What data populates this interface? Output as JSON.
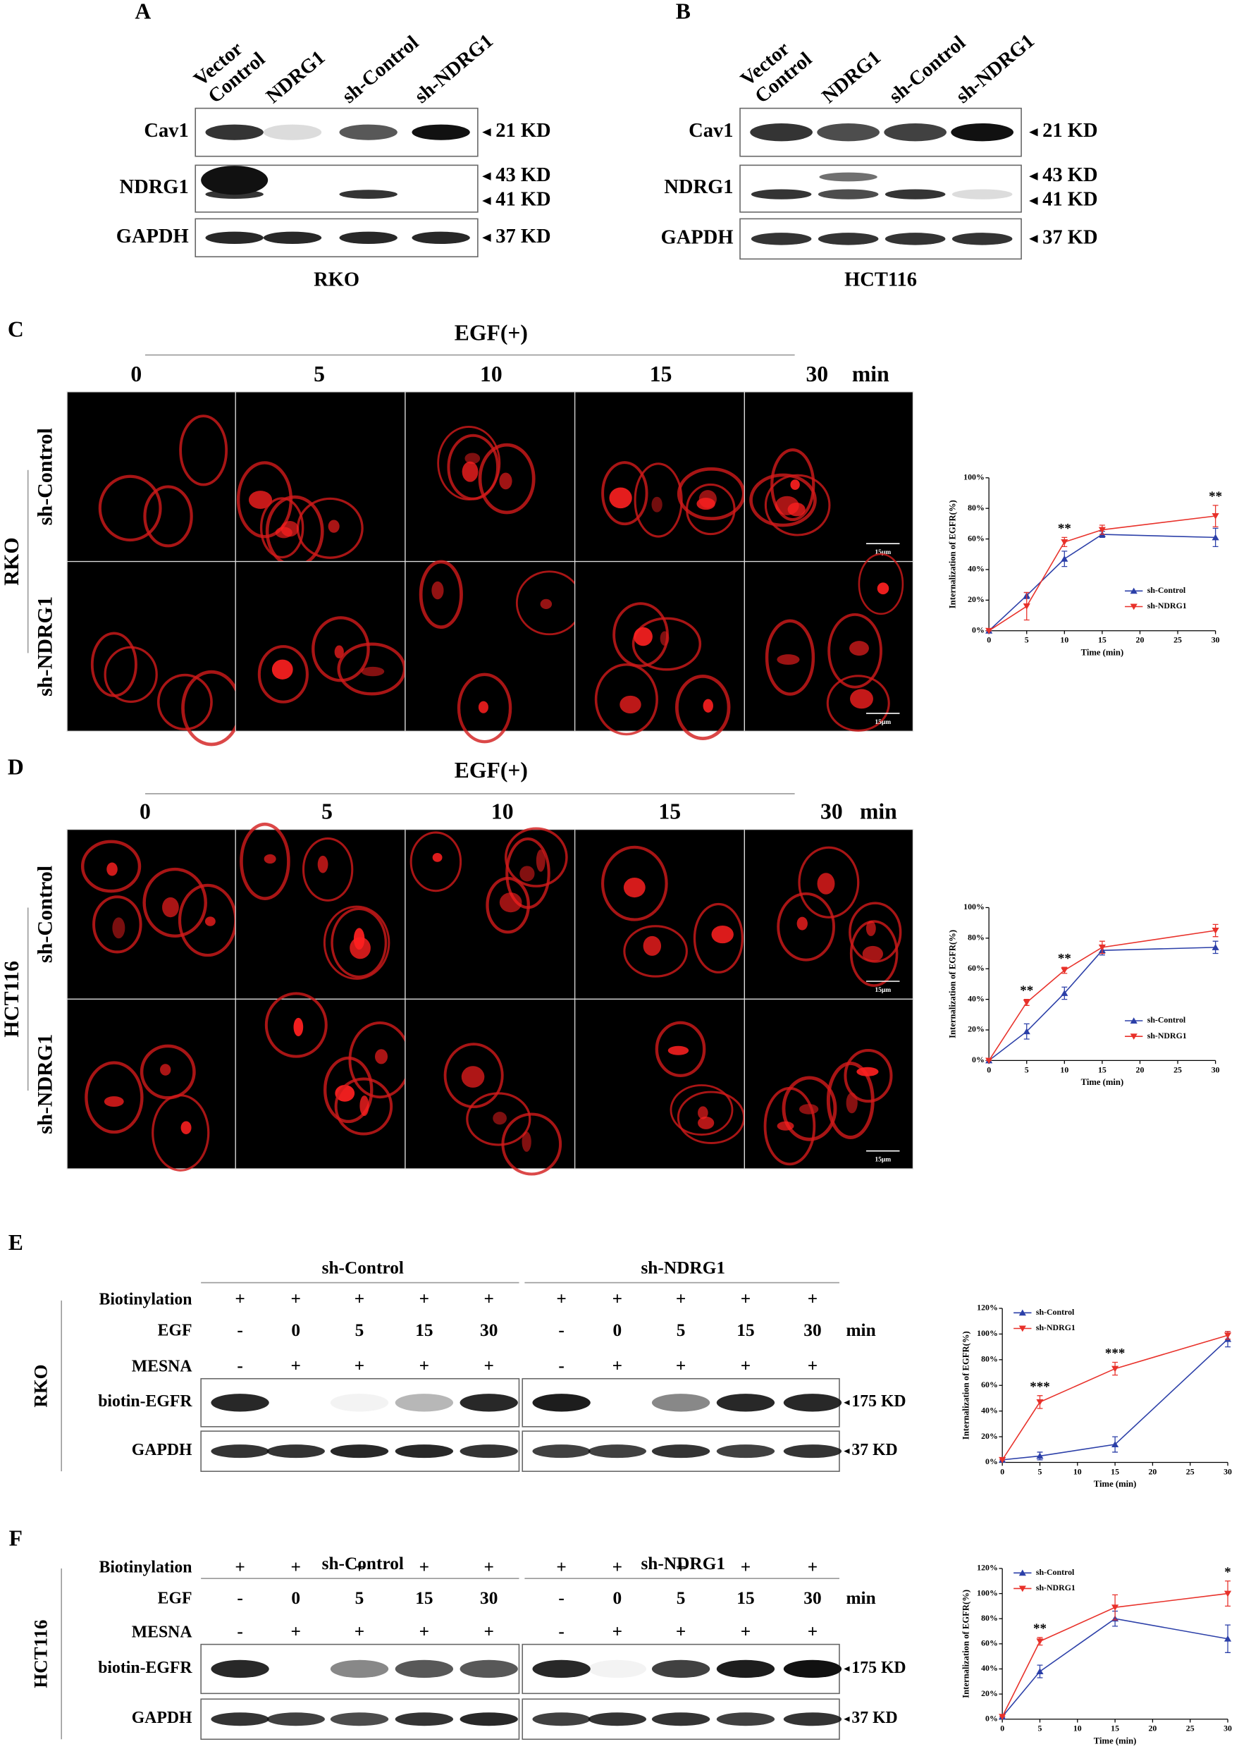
{
  "panels": {
    "A": {
      "letter": "A",
      "columns": [
        {
          "lines": [
            "Vector",
            "Control"
          ]
        },
        {
          "lines": [
            "NDRG1"
          ]
        },
        {
          "lines": [
            "sh-Control"
          ]
        },
        {
          "lines": [
            "sh-NDRG1"
          ]
        }
      ],
      "rows": [
        {
          "label": "Cav1",
          "markers": [
            "21 KD"
          ]
        },
        {
          "label": "NDRG1",
          "markers": [
            "43 KD",
            "41 KD"
          ]
        },
        {
          "label": "GAPDH",
          "markers": [
            "37 KD"
          ]
        }
      ],
      "cell_line": "RKO"
    },
    "B": {
      "letter": "B",
      "columns": [
        {
          "lines": [
            "Vector",
            "Control"
          ]
        },
        {
          "lines": [
            "NDRG1"
          ]
        },
        {
          "lines": [
            "sh-Control"
          ]
        },
        {
          "lines": [
            "sh-NDRG1"
          ]
        }
      ],
      "rows": [
        {
          "label": "Cav1",
          "markers": [
            "21 KD"
          ]
        },
        {
          "label": "NDRG1",
          "markers": [
            "43 KD",
            "41 KD"
          ]
        },
        {
          "label": "GAPDH",
          "markers": [
            "37 KD"
          ]
        }
      ],
      "cell_line": "HCT116"
    },
    "C": {
      "letter": "C",
      "treatment": "EGF(+)",
      "times": [
        "0",
        "5",
        "10",
        "15",
        "30"
      ],
      "time_unit": "min",
      "rows": [
        "sh-Control",
        "sh-NDRG1"
      ],
      "cell_line": "RKO",
      "scale_bar": "15μm"
    },
    "D": {
      "letter": "D",
      "treatment": "EGF(+)",
      "times": [
        "0",
        "5",
        "10",
        "15",
        "30"
      ],
      "time_unit": "min",
      "rows": [
        "sh-Control",
        "sh-NDRG1"
      ],
      "cell_line": "HCT116",
      "scale_bar": "15μm"
    },
    "E": {
      "letter": "E",
      "groups": [
        "sh-Control",
        "sh-NDRG1"
      ],
      "conditions": [
        {
          "label": "Biotinylation",
          "values": [
            "+",
            "+",
            "+",
            "+",
            "+",
            "+",
            "+",
            "+",
            "+",
            "+"
          ]
        },
        {
          "label": "EGF",
          "values": [
            "-",
            "0",
            "5",
            "15",
            "30",
            "-",
            "0",
            "5",
            "15",
            "30"
          ],
          "unit": "min"
        },
        {
          "label": "MESNA",
          "values": [
            "-",
            "+",
            "+",
            "+",
            "+",
            "-",
            "+",
            "+",
            "+",
            "+"
          ]
        }
      ],
      "blots": [
        {
          "label": "biotin-EGFR",
          "marker": "175 KD"
        },
        {
          "label": "GAPDH",
          "marker": "37 KD"
        }
      ],
      "cell_line": "RKO"
    },
    "F": {
      "letter": "F",
      "groups": [
        "sh-Control",
        "sh-NDRG1"
      ],
      "conditions": [
        {
          "label": "Biotinylation",
          "values": [
            "+",
            "+",
            "+",
            "+",
            "+",
            "+",
            "+",
            "+",
            "+",
            "+"
          ]
        },
        {
          "label": "EGF",
          "values": [
            "-",
            "0",
            "5",
            "15",
            "30",
            "-",
            "0",
            "5",
            "15",
            "30"
          ],
          "unit": "min"
        },
        {
          "label": "MESNA",
          "values": [
            "-",
            "+",
            "+",
            "+",
            "+",
            "-",
            "+",
            "+",
            "+",
            "+"
          ]
        }
      ],
      "blots": [
        {
          "label": "biotin-EGFR",
          "marker": "175 KD"
        },
        {
          "label": "GAPDH",
          "marker": "37 KD"
        }
      ],
      "cell_line": "HCT116"
    }
  },
  "chart_data": [
    {
      "type": "line",
      "x": [
        0,
        5,
        10,
        15,
        30
      ],
      "xlim": [
        0,
        30
      ],
      "xticks": [
        0,
        5,
        10,
        15,
        20,
        25,
        30
      ],
      "ylim": [
        0,
        100
      ],
      "yticks": [
        {
          "value": 0,
          "label": "0%"
        },
        {
          "value": 20,
          "label": "20%"
        },
        {
          "value": 40,
          "label": "40%"
        },
        {
          "value": 60,
          "label": "60%"
        },
        {
          "value": 80,
          "label": "80%"
        },
        {
          "value": 100,
          "label": "100%"
        }
      ],
      "xlabel": "Time (min)",
      "ylabel": "Internalization of EGFR(%)",
      "legend": "right",
      "series": [
        {
          "name": "sh-Control",
          "color": "#2b3fa8",
          "marker": "up",
          "values": [
            0,
            23,
            47,
            63,
            61
          ],
          "errors": [
            0,
            2,
            5,
            2,
            6
          ]
        },
        {
          "name": "sh-NDRG1",
          "color": "#e8312a",
          "marker": "down",
          "values": [
            0,
            16,
            58,
            66,
            75
          ],
          "errors": [
            0,
            9,
            3,
            3,
            7
          ]
        }
      ],
      "annotations": [
        {
          "text": "**",
          "x": 10
        },
        {
          "text": "**",
          "x": 30
        }
      ]
    },
    {
      "type": "line",
      "x": [
        0,
        5,
        10,
        15,
        30
      ],
      "xlim": [
        0,
        30
      ],
      "xticks": [
        0,
        5,
        10,
        15,
        20,
        25,
        30
      ],
      "ylim": [
        0,
        100
      ],
      "yticks": [
        {
          "value": 0,
          "label": "0%"
        },
        {
          "value": 20,
          "label": "20%"
        },
        {
          "value": 40,
          "label": "40%"
        },
        {
          "value": 60,
          "label": "60%"
        },
        {
          "value": 80,
          "label": "80%"
        },
        {
          "value": 100,
          "label": "100%"
        }
      ],
      "xlabel": "Time (min)",
      "ylabel": "Internalization of EGFR(%)",
      "legend": "right",
      "series": [
        {
          "name": "sh-Control",
          "color": "#2b3fa8",
          "marker": "up",
          "values": [
            0,
            19,
            44,
            72,
            74
          ],
          "errors": [
            0,
            5,
            4,
            3,
            4
          ]
        },
        {
          "name": "sh-NDRG1",
          "color": "#e8312a",
          "marker": "down",
          "values": [
            0,
            38,
            59,
            74,
            85
          ],
          "errors": [
            0,
            2,
            2,
            4,
            4
          ]
        }
      ],
      "annotations": [
        {
          "text": "**",
          "x": 5
        },
        {
          "text": "**",
          "x": 10
        }
      ]
    },
    {
      "type": "line",
      "x": [
        0,
        5,
        15,
        30
      ],
      "xlim": [
        0,
        30
      ],
      "xticks": [
        0,
        5,
        10,
        15,
        20,
        25,
        30
      ],
      "ylim": [
        0,
        120
      ],
      "yticks": [
        {
          "value": 0,
          "label": "0%"
        },
        {
          "value": 20,
          "label": "20%"
        },
        {
          "value": 40,
          "label": "40%"
        },
        {
          "value": 60,
          "label": "60%"
        },
        {
          "value": 80,
          "label": "80%"
        },
        {
          "value": 100,
          "label": "100%"
        },
        {
          "value": 120,
          "label": "120%"
        }
      ],
      "xlabel": "Time (min)",
      "ylabel": "Internalization of EGFR(%)",
      "legend": "upper left",
      "series": [
        {
          "name": "sh-Control",
          "color": "#2b3fa8",
          "marker": "up",
          "values": [
            2,
            5,
            14,
            96
          ],
          "errors": [
            0,
            3,
            6,
            6
          ]
        },
        {
          "name": "sh-NDRG1",
          "color": "#e8312a",
          "marker": "down",
          "values": [
            2,
            47,
            73,
            99
          ],
          "errors": [
            0,
            5,
            5,
            3
          ]
        }
      ],
      "annotations": [
        {
          "text": "***",
          "x": 5
        },
        {
          "text": "***",
          "x": 15
        }
      ]
    },
    {
      "type": "line",
      "x": [
        0,
        5,
        15,
        30
      ],
      "xlim": [
        0,
        30
      ],
      "xticks": [
        0,
        5,
        10,
        15,
        20,
        25,
        30
      ],
      "ylim": [
        0,
        120
      ],
      "yticks": [
        {
          "value": 0,
          "label": "0%"
        },
        {
          "value": 20,
          "label": "20%"
        },
        {
          "value": 40,
          "label": "40%"
        },
        {
          "value": 60,
          "label": "60%"
        },
        {
          "value": 80,
          "label": "80%"
        },
        {
          "value": 100,
          "label": "100%"
        },
        {
          "value": 120,
          "label": "120%"
        }
      ],
      "xlabel": "Time (min)",
      "ylabel": "Internalization of EGFR(%)",
      "legend": "upper left",
      "series": [
        {
          "name": "sh-Control",
          "color": "#2b3fa8",
          "marker": "up",
          "values": [
            2,
            38,
            80,
            64
          ],
          "errors": [
            0,
            5,
            6,
            11
          ]
        },
        {
          "name": "sh-NDRG1",
          "color": "#e8312a",
          "marker": "down",
          "values": [
            2,
            62,
            89,
            100
          ],
          "errors": [
            0,
            3,
            10,
            10
          ]
        }
      ],
      "annotations": [
        {
          "text": "**",
          "x": 5
        },
        {
          "text": "*",
          "x": 30
        }
      ]
    }
  ]
}
